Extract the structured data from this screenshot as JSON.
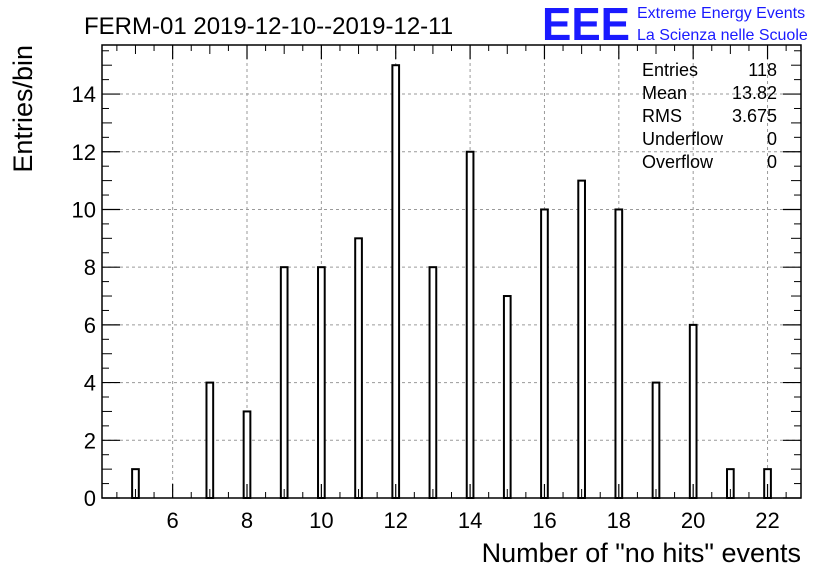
{
  "title": "FERM-01 2019-12-10--2019-12-11",
  "logo": {
    "mark": "EEE",
    "line1": "Extreme Energy Events",
    "line2": "La Scienza nelle Scuole"
  },
  "stats": {
    "rows": [
      {
        "label": "Entries",
        "value": "118"
      },
      {
        "label": "Mean",
        "value": "13.82"
      },
      {
        "label": "RMS",
        "value": "3.675"
      },
      {
        "label": "Underflow",
        "value": "0"
      },
      {
        "label": "Overflow",
        "value": "0"
      }
    ]
  },
  "chart_data": {
    "type": "bar",
    "title": "FERM-01 2019-12-10--2019-12-11",
    "xlabel": "Number of \"no hits\" events",
    "ylabel": "Entries/bin",
    "xlim": [
      4.1,
      22.9
    ],
    "ylim": [
      0,
      15.7
    ],
    "x_ticks": [
      6,
      8,
      10,
      12,
      14,
      16,
      18,
      20,
      22
    ],
    "y_ticks": [
      0,
      2,
      4,
      6,
      8,
      10,
      12,
      14
    ],
    "grid": true,
    "legend": "none",
    "bar_width": 0.18,
    "bins": [
      {
        "x": 5,
        "y": 1
      },
      {
        "x": 7,
        "y": 4
      },
      {
        "x": 8,
        "y": 3
      },
      {
        "x": 9,
        "y": 8
      },
      {
        "x": 10,
        "y": 8
      },
      {
        "x": 11,
        "y": 9
      },
      {
        "x": 12,
        "y": 15
      },
      {
        "x": 13,
        "y": 8
      },
      {
        "x": 14,
        "y": 12
      },
      {
        "x": 15,
        "y": 7
      },
      {
        "x": 16,
        "y": 10
      },
      {
        "x": 17,
        "y": 11
      },
      {
        "x": 18,
        "y": 10
      },
      {
        "x": 19,
        "y": 4
      },
      {
        "x": 20,
        "y": 6
      },
      {
        "x": 21,
        "y": 1
      },
      {
        "x": 22,
        "y": 1
      }
    ]
  }
}
